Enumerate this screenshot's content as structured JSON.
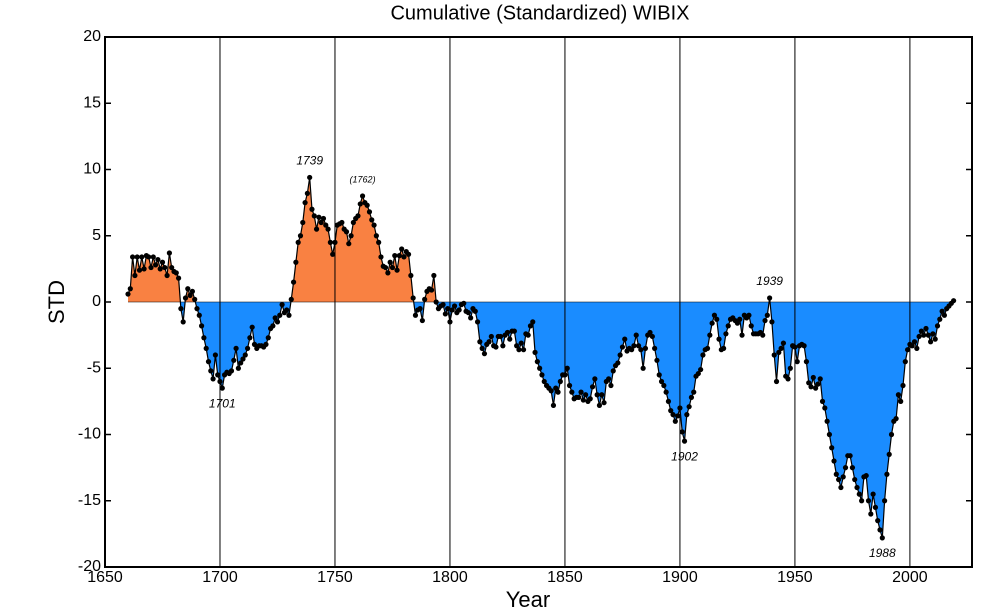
{
  "chart_data": {
    "type": "area",
    "title": "Cumulative (Standardized) WIBIX",
    "xlabel": "Year",
    "ylabel": "STD",
    "xlim": [
      1650,
      2027
    ],
    "xticks": [
      1650,
      1700,
      1750,
      1800,
      1850,
      1900,
      1950,
      2000
    ],
    "ylim": [
      -20,
      20
    ],
    "yticks": [
      -20,
      -15,
      -10,
      -5,
      0,
      5,
      10,
      15,
      20
    ],
    "grid": "x",
    "colors": {
      "positive": "#f98142",
      "negative": "#1a8cff",
      "line": "#000000"
    },
    "x": [
      1660,
      1661,
      1662,
      1663,
      1664,
      1665,
      1666,
      1667,
      1668,
      1669,
      1670,
      1671,
      1672,
      1673,
      1674,
      1675,
      1676,
      1677,
      1678,
      1679,
      1680,
      1681,
      1682,
      1683,
      1684,
      1685,
      1686,
      1687,
      1688,
      1689,
      1690,
      1691,
      1692,
      1693,
      1694,
      1695,
      1696,
      1697,
      1698,
      1699,
      1700,
      1701,
      1702,
      1703,
      1704,
      1705,
      1706,
      1707,
      1708,
      1709,
      1710,
      1711,
      1712,
      1713,
      1714,
      1715,
      1716,
      1717,
      1718,
      1719,
      1720,
      1721,
      1722,
      1723,
      1724,
      1725,
      1726,
      1727,
      1728,
      1729,
      1730,
      1731,
      1732,
      1733,
      1734,
      1735,
      1736,
      1737,
      1738,
      1739,
      1740,
      1741,
      1742,
      1743,
      1744,
      1745,
      1746,
      1747,
      1748,
      1749,
      1750,
      1751,
      1752,
      1753,
      1754,
      1755,
      1756,
      1757,
      1758,
      1759,
      1760,
      1761,
      1762,
      1763,
      1764,
      1765,
      1766,
      1767,
      1768,
      1769,
      1770,
      1771,
      1772,
      1773,
      1774,
      1775,
      1776,
      1777,
      1778,
      1779,
      1780,
      1781,
      1782,
      1783,
      1784,
      1785,
      1786,
      1787,
      1788,
      1789,
      1790,
      1791,
      1792,
      1793,
      1794,
      1795,
      1796,
      1797,
      1798,
      1799,
      1800,
      1801,
      1802,
      1803,
      1804,
      1805,
      1806,
      1807,
      1808,
      1809,
      1810,
      1811,
      1812,
      1813,
      1814,
      1815,
      1816,
      1817,
      1818,
      1819,
      1820,
      1821,
      1822,
      1823,
      1824,
      1825,
      1826,
      1827,
      1828,
      1829,
      1830,
      1831,
      1832,
      1833,
      1834,
      1835,
      1836,
      1837,
      1838,
      1839,
      1840,
      1841,
      1842,
      1843,
      1844,
      1845,
      1846,
      1847,
      1848,
      1849,
      1850,
      1851,
      1852,
      1853,
      1854,
      1855,
      1856,
      1857,
      1858,
      1859,
      1860,
      1861,
      1862,
      1863,
      1864,
      1865,
      1866,
      1867,
      1868,
      1869,
      1870,
      1871,
      1872,
      1873,
      1874,
      1875,
      1876,
      1877,
      1878,
      1879,
      1880,
      1881,
      1882,
      1883,
      1884,
      1885,
      1886,
      1887,
      1888,
      1889,
      1890,
      1891,
      1892,
      1893,
      1894,
      1895,
      1896,
      1897,
      1898,
      1899,
      1900,
      1901,
      1902,
      1903,
      1904,
      1905,
      1906,
      1907,
      1908,
      1909,
      1910,
      1911,
      1912,
      1913,
      1914,
      1915,
      1916,
      1917,
      1918,
      1919,
      1920,
      1921,
      1922,
      1923,
      1924,
      1925,
      1926,
      1927,
      1928,
      1929,
      1930,
      1931,
      1932,
      1933,
      1934,
      1935,
      1936,
      1937,
      1938,
      1939,
      1940,
      1941,
      1942,
      1943,
      1944,
      1945,
      1946,
      1947,
      1948,
      1949,
      1950,
      1951,
      1952,
      1953,
      1954,
      1955,
      1956,
      1957,
      1958,
      1959,
      1960,
      1961,
      1962,
      1963,
      1964,
      1965,
      1966,
      1967,
      1968,
      1969,
      1970,
      1971,
      1972,
      1973,
      1974,
      1975,
      1976,
      1977,
      1978,
      1979,
      1980,
      1981,
      1982,
      1983,
      1984,
      1985,
      1986,
      1987,
      1988,
      1989,
      1990,
      1991,
      1992,
      1993,
      1994,
      1995,
      1996,
      1997,
      1998,
      1999,
      2000,
      2001,
      2002,
      2003,
      2004,
      2005,
      2006,
      2007,
      2008,
      2009,
      2010,
      2011,
      2012,
      2013,
      2014,
      2015,
      2016,
      2017,
      2018,
      2019
    ],
    "values": [
      0.6,
      1.0,
      3.4,
      2.0,
      3.4,
      2.4,
      3.4,
      2.5,
      3.5,
      3.4,
      2.6,
      3.4,
      2.8,
      3.2,
      2.5,
      3.0,
      2.6,
      2.0,
      3.7,
      2.6,
      2.3,
      2.2,
      1.8,
      -0.5,
      -1.5,
      0.3,
      1.0,
      0.5,
      0.8,
      0.2,
      -0.5,
      -1.0,
      -1.8,
      -2.7,
      -3.5,
      -4.5,
      -5.2,
      -5.8,
      -4.0,
      -5.5,
      -6.0,
      -6.5,
      -5.5,
      -5.3,
      -5.4,
      -5.2,
      -4.4,
      -3.5,
      -5.0,
      -4.6,
      -4.3,
      -4.0,
      -3.5,
      -2.7,
      -1.9,
      -3.2,
      -3.5,
      -3.3,
      -3.3,
      -3.4,
      -3.2,
      -2.7,
      -2.0,
      -1.8,
      -1.2,
      -1.5,
      -1.0,
      -0.2,
      -0.8,
      -0.6,
      -1.0,
      0.2,
      1.5,
      3.0,
      4.5,
      5.0,
      6.0,
      7.5,
      8.2,
      9.4,
      7.0,
      6.5,
      5.5,
      6.4,
      6.0,
      6.3,
      5.8,
      5.5,
      4.5,
      3.6,
      4.5,
      5.8,
      5.9,
      6.0,
      5.5,
      5.3,
      4.4,
      5.0,
      6.0,
      6.3,
      6.5,
      7.4,
      8.0,
      7.5,
      7.3,
      6.8,
      6.2,
      5.8,
      5.0,
      4.5,
      3.4,
      2.7,
      2.6,
      2.2,
      3.0,
      2.6,
      3.5,
      2.4,
      3.5,
      4.0,
      3.4,
      3.8,
      3.6,
      2.0,
      0.3,
      -1.0,
      -0.6,
      -0.5,
      -1.4,
      0.2,
      0.8,
      1.0,
      0.9,
      2.0,
      0.0,
      -0.5,
      -0.3,
      -0.2,
      -0.9,
      -0.5,
      -1.5,
      -0.6,
      -0.3,
      -0.8,
      -0.6,
      -0.2,
      -0.1,
      -0.7,
      -0.8,
      -1.2,
      -0.5,
      -0.7,
      -1.5,
      -3.0,
      -3.5,
      -3.9,
      -3.2,
      -3.0,
      -2.6,
      -3.3,
      -3.4,
      -2.6,
      -2.6,
      -3.3,
      -2.5,
      -2.3,
      -2.8,
      -2.2,
      -2.2,
      -3.3,
      -3.6,
      -3.1,
      -3.6,
      -2.4,
      -2.5,
      -1.8,
      -1.5,
      -3.8,
      -4.5,
      -5.0,
      -5.5,
      -6.0,
      -6.3,
      -6.5,
      -6.7,
      -7.8,
      -6.5,
      -6.8,
      -6.0,
      -5.5,
      -5.5,
      -5.0,
      -6.3,
      -6.8,
      -7.3,
      -7.2,
      -7.2,
      -6.8,
      -7.4,
      -7.0,
      -7.5,
      -7.3,
      -6.4,
      -5.8,
      -7.0,
      -7.8,
      -7.0,
      -7.6,
      -6.0,
      -5.8,
      -6.3,
      -5.2,
      -4.8,
      -4.6,
      -4.0,
      -3.4,
      -2.8,
      -3.7,
      -3.5,
      -3.6,
      -3.3,
      -2.5,
      -3.3,
      -3.6,
      -5.0,
      -3.5,
      -2.5,
      -2.3,
      -2.6,
      -3.5,
      -4.4,
      -5.5,
      -6.0,
      -6.3,
      -6.8,
      -7.5,
      -8.2,
      -8.5,
      -9.0,
      -8.6,
      -8.0,
      -9.8,
      -10.5,
      -8.5,
      -7.9,
      -7.2,
      -6.8,
      -5.6,
      -5.4,
      -5.1,
      -4.0,
      -3.6,
      -3.5,
      -2.5,
      -1.6,
      -1.0,
      -1.3,
      -2.8,
      -3.6,
      -3.5,
      -2.4,
      -1.8,
      -1.3,
      -1.2,
      -1.4,
      -1.6,
      -1.3,
      -2.5,
      -1.0,
      -1.2,
      -1.0,
      -1.8,
      -2.4,
      -2.4,
      -2.4,
      -2.3,
      -2.5,
      -1.4,
      -1.0,
      0.3,
      -1.5,
      -4.0,
      -6.0,
      -3.8,
      -3.5,
      -3.1,
      -5.6,
      -5.8,
      -5.0,
      -3.3,
      -3.4,
      -4.5,
      -3.3,
      -3.2,
      -3.3,
      -4.5,
      -6.1,
      -6.4,
      -5.7,
      -6.5,
      -6.2,
      -5.8,
      -7.5,
      -8.0,
      -9.0,
      -10.0,
      -11.0,
      -12.0,
      -13.0,
      -13.4,
      -14.0,
      -13.2,
      -12.5,
      -11.6,
      -11.6,
      -12.5,
      -13.4,
      -14.0,
      -14.5,
      -15.0,
      -13.2,
      -13.1,
      -15.0,
      -16.0,
      -14.5,
      -15.5,
      -16.5,
      -17.2,
      -17.8,
      -15.0,
      -13.0,
      -11.5,
      -10.0,
      -9.0,
      -8.8,
      -7.0,
      -7.5,
      -6.3,
      -4.5,
      -3.6,
      -3.2,
      -3.3,
      -3.0,
      -3.5,
      -2.6,
      -2.2,
      -2.5,
      -2.0,
      -2.5,
      -3.0,
      -2.4,
      -2.8,
      -1.8,
      -1.3,
      -0.7,
      -1.0,
      -0.5,
      -0.3,
      -0.1,
      0.1
    ],
    "annotations": [
      {
        "text": "1701",
        "x": 1701
      },
      {
        "text": "1739",
        "x": 1739
      },
      {
        "text": "(1762)",
        "x": 1762
      },
      {
        "text": "1902",
        "x": 1902
      },
      {
        "text": "1939",
        "x": 1939
      },
      {
        "text": "1988",
        "x": 1988
      }
    ]
  }
}
